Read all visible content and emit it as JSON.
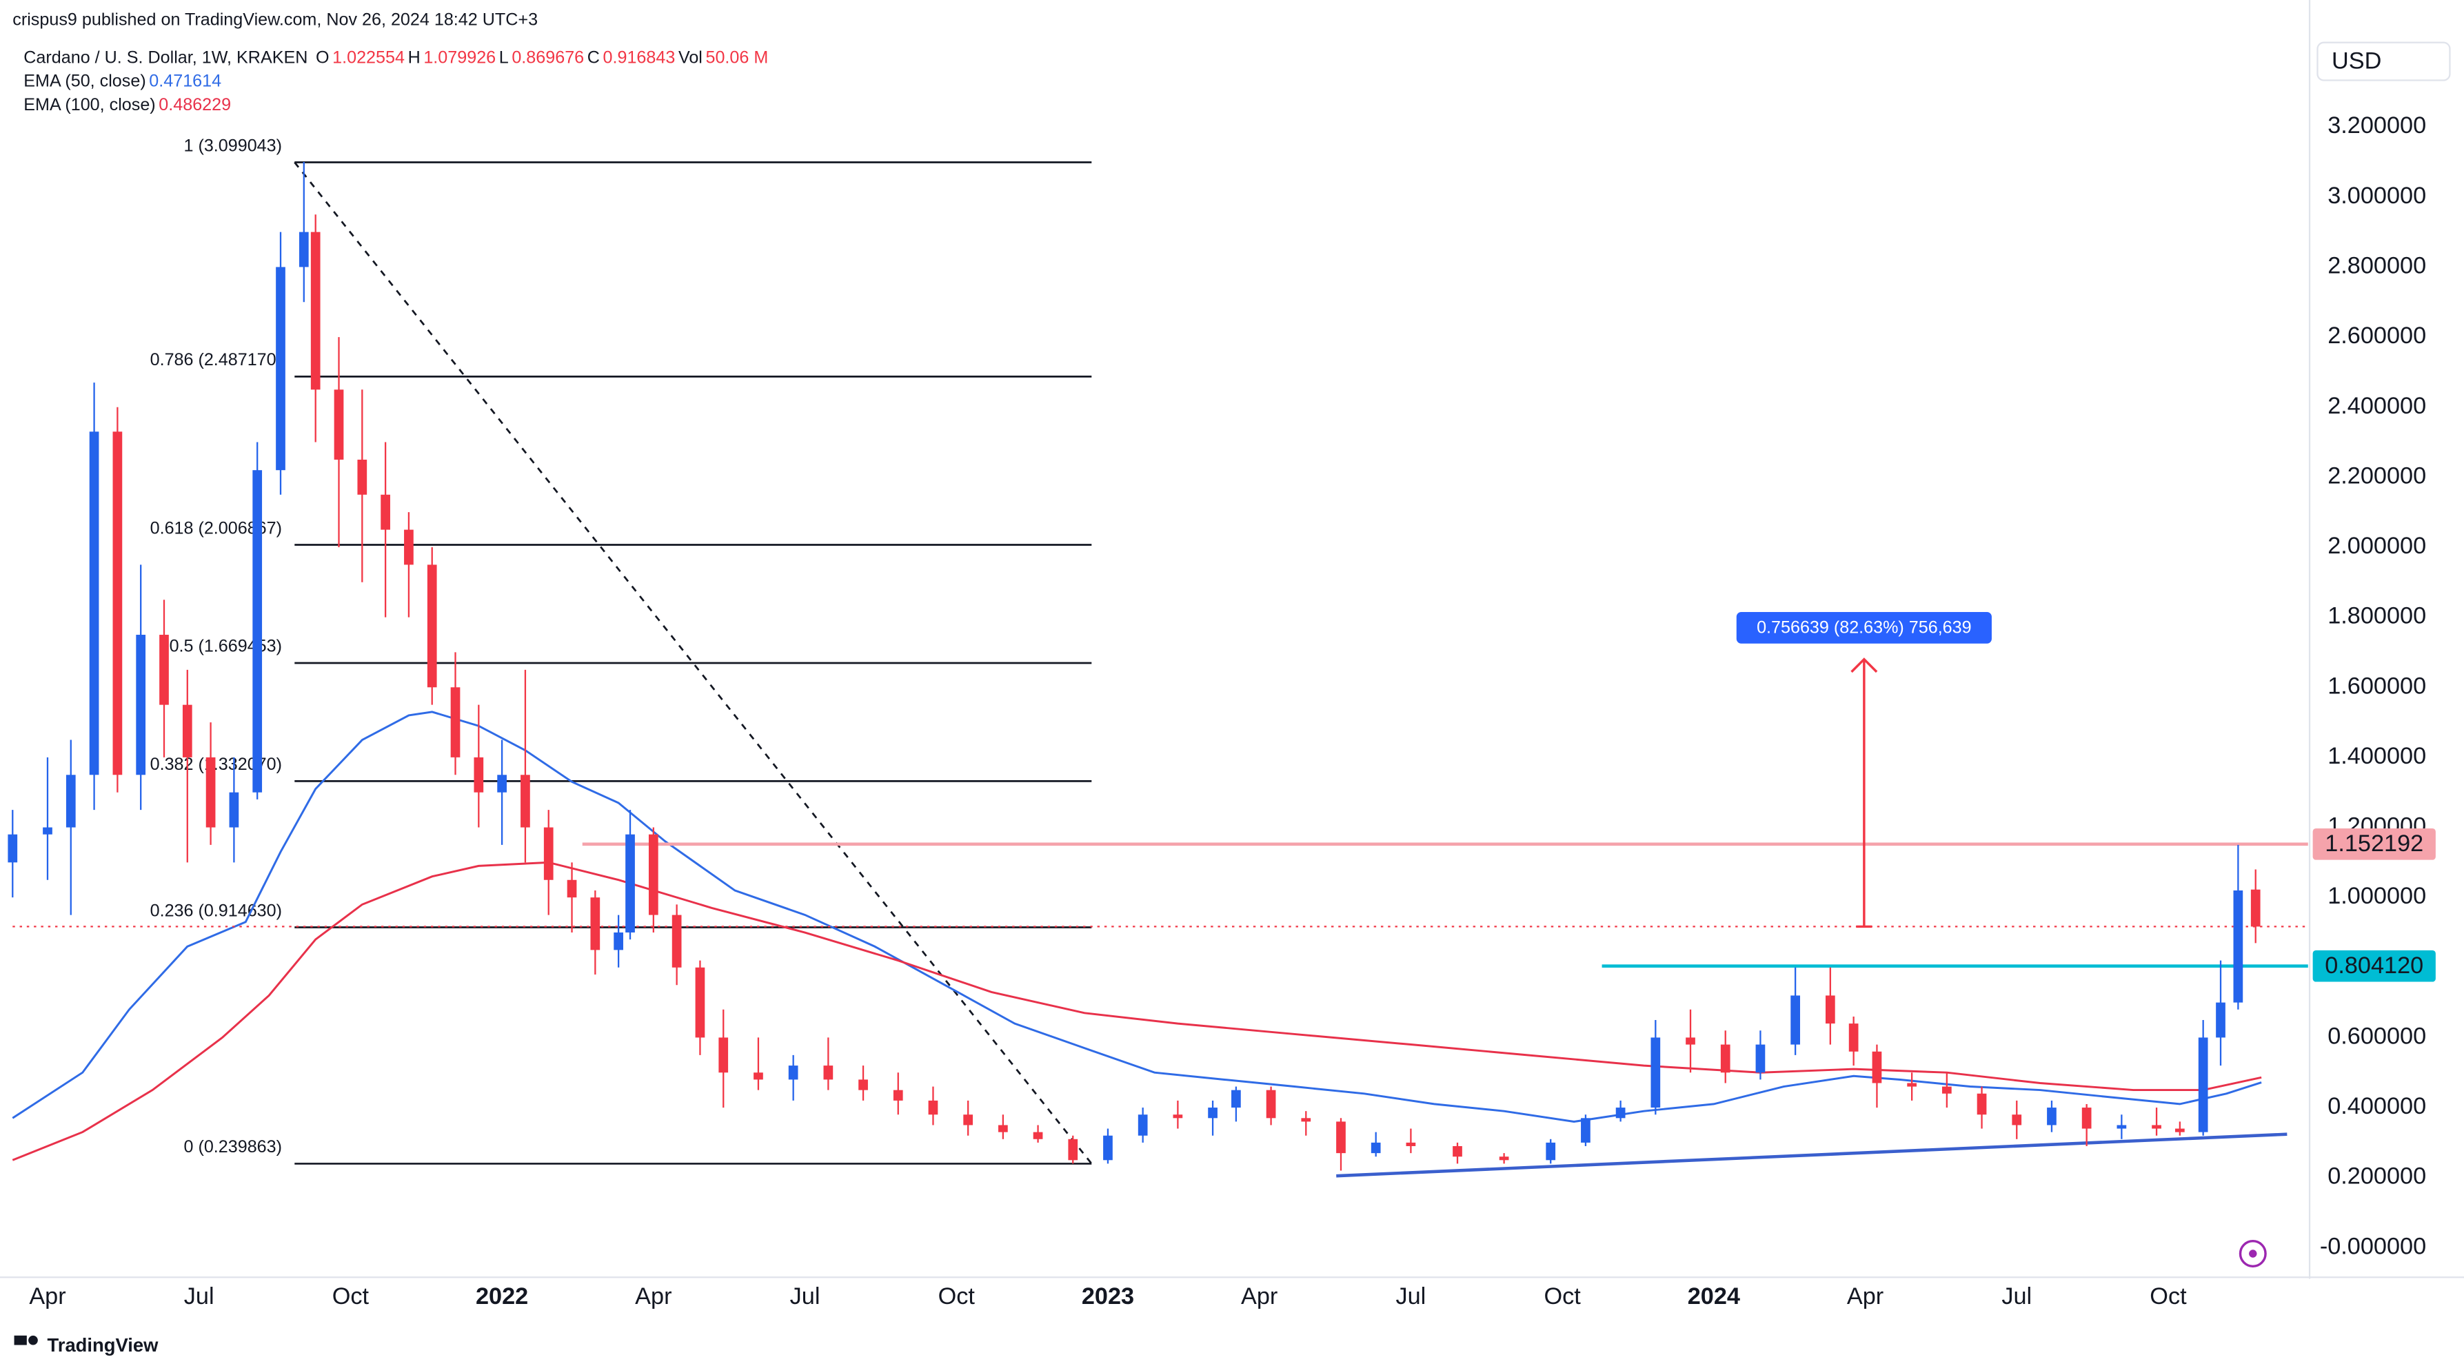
{
  "header": {
    "published": "crispus9 published on TradingView.com, Nov 26, 2024 18:42 UTC+3"
  },
  "chart_data": {
    "type": "candlestick",
    "title": "Cardano / U. S. Dollar, 1W, KRAKEN",
    "legend_keys": [
      "O",
      "H",
      "L",
      "C"
    ],
    "volume_key": "Vol",
    "volume": "50.06 M",
    "currency": "USD",
    "up_color": "#2463eb",
    "down_color": "#f23645",
    "x": [
      10,
      13,
      15,
      17,
      19,
      21,
      23,
      25,
      27,
      29,
      31,
      33,
      35,
      36,
      38,
      40,
      42,
      44,
      46,
      48,
      50,
      52,
      54,
      56,
      58,
      60,
      62,
      63,
      65,
      67,
      69,
      71,
      74,
      77,
      80,
      83,
      86,
      89,
      92,
      95,
      98,
      101,
      104,
      107,
      110,
      113,
      115,
      118,
      121,
      124,
      127,
      130,
      134,
      138,
      142,
      145,
      148,
      151,
      154,
      157,
      160,
      163,
      166,
      168,
      170,
      173,
      176,
      179,
      182,
      185,
      188,
      191,
      194,
      196,
      198,
      199.5,
      201,
      202.5
    ],
    "open": [
      1.1,
      1.18,
      1.2,
      1.35,
      2.33,
      1.35,
      1.75,
      1.55,
      1.4,
      1.2,
      1.3,
      2.22,
      2.8,
      2.9,
      2.45,
      2.25,
      2.15,
      2.05,
      1.95,
      1.6,
      1.4,
      1.3,
      1.35,
      1.2,
      1.05,
      1.0,
      0.85,
      0.9,
      1.18,
      0.95,
      0.8,
      0.6,
      0.5,
      0.48,
      0.52,
      0.48,
      0.45,
      0.42,
      0.38,
      0.35,
      0.33,
      0.31,
      0.25,
      0.32,
      0.38,
      0.37,
      0.4,
      0.45,
      0.37,
      0.36,
      0.27,
      0.3,
      0.29,
      0.26,
      0.25,
      0.3,
      0.37,
      0.4,
      0.6,
      0.58,
      0.5,
      0.58,
      0.72,
      0.64,
      0.56,
      0.47,
      0.46,
      0.44,
      0.38,
      0.35,
      0.4,
      0.34,
      0.35,
      0.34,
      0.33,
      0.6,
      0.7,
      1.022554
    ],
    "high": [
      1.25,
      1.4,
      1.45,
      2.47,
      2.4,
      1.95,
      1.85,
      1.65,
      1.5,
      1.4,
      2.3,
      2.9,
      3.1,
      2.95,
      2.6,
      2.45,
      2.3,
      2.1,
      2.0,
      1.7,
      1.55,
      1.45,
      1.65,
      1.25,
      1.1,
      1.02,
      0.95,
      1.25,
      1.2,
      0.98,
      0.82,
      0.68,
      0.6,
      0.55,
      0.6,
      0.52,
      0.5,
      0.46,
      0.42,
      0.38,
      0.35,
      0.32,
      0.34,
      0.4,
      0.42,
      0.42,
      0.46,
      0.46,
      0.39,
      0.37,
      0.33,
      0.34,
      0.3,
      0.27,
      0.31,
      0.38,
      0.42,
      0.65,
      0.68,
      0.62,
      0.62,
      0.8,
      0.8,
      0.66,
      0.58,
      0.5,
      0.5,
      0.46,
      0.42,
      0.42,
      0.41,
      0.38,
      0.4,
      0.36,
      0.65,
      0.82,
      1.15,
      1.079926
    ],
    "low": [
      1.0,
      1.05,
      0.95,
      1.25,
      1.3,
      1.25,
      1.4,
      1.1,
      1.15,
      1.1,
      1.28,
      2.15,
      2.7,
      2.3,
      2.0,
      1.9,
      1.8,
      1.8,
      1.55,
      1.35,
      1.2,
      1.15,
      1.1,
      0.95,
      0.9,
      0.78,
      0.8,
      0.88,
      0.9,
      0.75,
      0.55,
      0.4,
      0.45,
      0.42,
      0.45,
      0.42,
      0.38,
      0.35,
      0.32,
      0.31,
      0.3,
      0.24,
      0.24,
      0.3,
      0.34,
      0.32,
      0.36,
      0.35,
      0.32,
      0.22,
      0.26,
      0.27,
      0.24,
      0.24,
      0.24,
      0.29,
      0.36,
      0.38,
      0.5,
      0.47,
      0.48,
      0.55,
      0.58,
      0.52,
      0.4,
      0.42,
      0.4,
      0.34,
      0.31,
      0.33,
      0.29,
      0.31,
      0.32,
      0.32,
      0.32,
      0.52,
      0.68,
      0.869676
    ],
    "close": [
      1.18,
      1.2,
      1.35,
      2.33,
      1.35,
      1.75,
      1.55,
      1.4,
      1.2,
      1.3,
      2.22,
      2.8,
      2.9,
      2.45,
      2.25,
      2.15,
      2.05,
      1.95,
      1.6,
      1.4,
      1.3,
      1.35,
      1.2,
      1.05,
      1.0,
      0.85,
      0.9,
      1.18,
      0.95,
      0.8,
      0.6,
      0.5,
      0.48,
      0.52,
      0.48,
      0.45,
      0.42,
      0.38,
      0.35,
      0.33,
      0.31,
      0.25,
      0.32,
      0.38,
      0.37,
      0.4,
      0.45,
      0.37,
      0.36,
      0.27,
      0.3,
      0.29,
      0.26,
      0.25,
      0.3,
      0.37,
      0.4,
      0.6,
      0.58,
      0.5,
      0.58,
      0.72,
      0.64,
      0.56,
      0.47,
      0.46,
      0.44,
      0.38,
      0.35,
      0.4,
      0.34,
      0.35,
      0.34,
      0.33,
      0.6,
      0.7,
      1.02,
      0.916843
    ],
    "series": [
      {
        "name": "EMA (50, close)",
        "color": "#2f6be6",
        "x": [
          10,
          16,
          20,
          25,
          30,
          33,
          36,
          40,
          44,
          46,
          50,
          54,
          58,
          62,
          66,
          72,
          78,
          84,
          90,
          96,
          102,
          108,
          114,
          120,
          126,
          132,
          138,
          144,
          150,
          156,
          162,
          168,
          172,
          178,
          184,
          190,
          196,
          200,
          203
        ],
        "values": [
          0.37,
          0.5,
          0.68,
          0.86,
          0.93,
          1.13,
          1.31,
          1.45,
          1.52,
          1.53,
          1.49,
          1.42,
          1.33,
          1.27,
          1.16,
          1.02,
          0.95,
          0.86,
          0.75,
          0.64,
          0.57,
          0.5,
          0.48,
          0.46,
          0.44,
          0.41,
          0.39,
          0.36,
          0.39,
          0.41,
          0.46,
          0.49,
          0.48,
          0.46,
          0.45,
          0.43,
          0.41,
          0.44,
          0.471614
        ]
      },
      {
        "name": "EMA (100, close)",
        "color": "#e8314a",
        "x": [
          10,
          16,
          22,
          28,
          32,
          36,
          40,
          46,
          50,
          56,
          62,
          70,
          78,
          86,
          94,
          102,
          110,
          120,
          130,
          140,
          150,
          160,
          168,
          176,
          184,
          192,
          198,
          203
        ],
        "values": [
          0.25,
          0.33,
          0.45,
          0.6,
          0.72,
          0.88,
          0.98,
          1.06,
          1.09,
          1.1,
          1.05,
          0.97,
          0.9,
          0.82,
          0.73,
          0.67,
          0.64,
          0.61,
          0.58,
          0.55,
          0.52,
          0.5,
          0.51,
          0.5,
          0.47,
          0.45,
          0.45,
          0.486229
        ]
      }
    ],
    "fib": {
      "x_start": 34.2,
      "x_end": 102.6,
      "color": "#131722",
      "levels": [
        {
          "value": 3.099043,
          "label": "1 (3.099043)"
        },
        {
          "value": 2.48717,
          "label": "0.786 (2.487170)"
        },
        {
          "value": 2.006867,
          "label": "0.618 (2.006867)"
        },
        {
          "value": 1.669453,
          "label": "0.5 (1.669453)"
        },
        {
          "value": 1.33207,
          "label": "0.382 (1.332070)"
        },
        {
          "value": 0.91463,
          "label": "0.236 (0.914630)"
        },
        {
          "value": 0.239863,
          "label": "0 (0.239863)"
        }
      ]
    },
    "levels": [
      {
        "value": 1.152192,
        "label": "1.152192",
        "color": "#f5a3ab",
        "x_start": 58.9
      },
      {
        "value": 0.80412,
        "label": "0.804120",
        "color": "#00bcd4",
        "x_start": 146.4
      }
    ],
    "trendline": {
      "color": "#3a5fcd",
      "x": [
        123.6,
        205.2
      ],
      "values": [
        0.205,
        0.324
      ]
    },
    "measure": {
      "x": 168.9,
      "to": 1.68,
      "color": "#f23645",
      "label_color": "#2962ff",
      "label": "0.756639 (82.63%) 756,639"
    },
    "xlim": [
      10,
      207
    ],
    "xticks": [
      {
        "value": 13,
        "label": "Apr"
      },
      {
        "value": 26,
        "label": "Jul"
      },
      {
        "value": 39,
        "label": "Oct"
      },
      {
        "value": 52,
        "label": "2022"
      },
      {
        "value": 65,
        "label": "Apr"
      },
      {
        "value": 78,
        "label": "Jul"
      },
      {
        "value": 91,
        "label": "Oct"
      },
      {
        "value": 104,
        "label": "2023"
      },
      {
        "value": 117,
        "label": "Apr"
      },
      {
        "value": 130,
        "label": "Jul"
      },
      {
        "value": 143,
        "label": "Oct"
      },
      {
        "value": 156,
        "label": "2024"
      },
      {
        "value": 169,
        "label": "Apr"
      },
      {
        "value": 182,
        "label": "Jul"
      },
      {
        "value": 195,
        "label": "Oct"
      }
    ],
    "ylim": [
      -0.08,
      3.45
    ],
    "yticks": [
      {
        "value": 0,
        "label": "-0.000000"
      },
      {
        "value": 0.2,
        "label": "0.200000"
      },
      {
        "value": 0.4,
        "label": "0.400000"
      },
      {
        "value": 0.6,
        "label": "0.600000"
      },
      {
        "value": 0.8,
        "label": "0.800000"
      },
      {
        "value": 1,
        "label": "1.000000"
      },
      {
        "value": 1.2,
        "label": "1.200000"
      },
      {
        "value": 1.4,
        "label": "1.400000"
      },
      {
        "value": 1.6,
        "label": "1.600000"
      },
      {
        "value": 1.8,
        "label": "1.800000"
      },
      {
        "value": 2,
        "label": "2.000000"
      },
      {
        "value": 2.2,
        "label": "2.200000"
      },
      {
        "value": 2.4,
        "label": "2.400000"
      },
      {
        "value": 2.6,
        "label": "2.600000"
      },
      {
        "value": 2.8,
        "label": "2.800000"
      },
      {
        "value": 3,
        "label": "3.000000"
      },
      {
        "value": 3.2,
        "label": "3.200000"
      }
    ],
    "grid": false
  },
  "footer": {
    "brand": "TradingView"
  }
}
